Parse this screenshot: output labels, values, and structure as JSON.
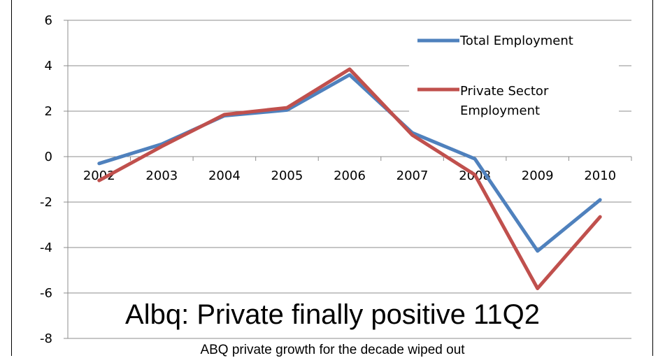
{
  "chart_data": {
    "type": "line",
    "categories": [
      "2002",
      "2003",
      "2004",
      "2005",
      "2006",
      "2007",
      "2008",
      "2009",
      "2010"
    ],
    "series": [
      {
        "name": "Total Employment",
        "color": "#4F81BD",
        "values": [
          -0.3,
          0.55,
          1.8,
          2.05,
          3.6,
          1.05,
          -0.1,
          -4.15,
          -1.9
        ]
      },
      {
        "name": "Private Sector Employment",
        "color": "#C0504D",
        "values": [
          -1.05,
          0.45,
          1.85,
          2.15,
          3.85,
          0.95,
          -0.8,
          -5.8,
          -2.65
        ]
      }
    ],
    "ylim": [
      -8,
      6
    ],
    "yticks": [
      "6",
      "4",
      "2",
      "0",
      "-2",
      "-4",
      "-6",
      "-8"
    ],
    "grid": true,
    "legend_position": "top-right",
    "legend": {
      "line1": "Total Employment",
      "line2a": "Private Sector",
      "line2b": "Employment"
    }
  },
  "overlay": {
    "title": "Albq:  Private finally positive 11Q2",
    "subtitle": "ABQ private growth for the decade wiped out"
  }
}
